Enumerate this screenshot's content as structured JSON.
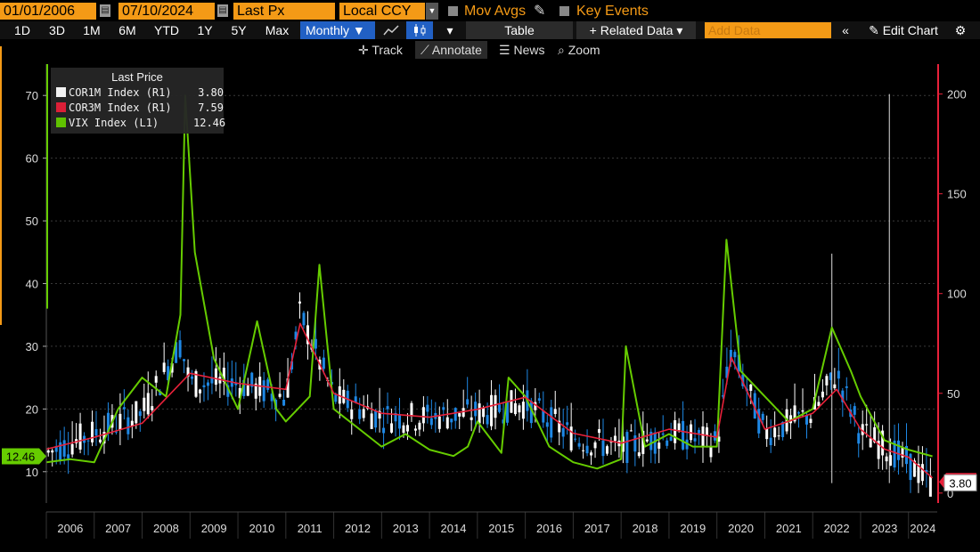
{
  "toolbar": {
    "start_date": "01/01/2006",
    "end_date": "07/10/2024",
    "field": "Last Px",
    "currency": "Local CCY",
    "mov_avgs": "Mov Avgs",
    "key_events": "Key Events",
    "periods": [
      "1D",
      "3D",
      "1M",
      "6M",
      "YTD",
      "1Y",
      "5Y",
      "Max"
    ],
    "frequency": "Monthly ▼",
    "table": "Table",
    "related_data": "+ Related Data ▾",
    "add_data_placeholder": "Add Data",
    "edit_chart": "Edit Chart",
    "track": "Track",
    "annotate": "Annotate",
    "news": "News",
    "zoom": "Zoom"
  },
  "colors": {
    "accent": "#f49a16",
    "active_tab": "#2160c4",
    "cor1m": "#ffffff",
    "cor3m": "#e8213a",
    "vix": "#66cc00",
    "candle_up": "#ffffff",
    "candle_down": "#1e88e5"
  },
  "chart_data": {
    "type": "line",
    "title": "Last Price",
    "x_tick_labels": [
      "2006",
      "2007",
      "2008",
      "2009",
      "2010",
      "2011",
      "2012",
      "2013",
      "2014",
      "2015",
      "2016",
      "2017",
      "2018",
      "2019",
      "2020",
      "2021",
      "2022",
      "2023",
      "2024"
    ],
    "x_range": [
      2006.0,
      2024.6
    ],
    "left_axis": {
      "range": [
        5,
        75
      ],
      "ticks": [
        10,
        20,
        30,
        40,
        50,
        60,
        70
      ]
    },
    "right_axis": {
      "range": [
        -5,
        215
      ],
      "ticks": [
        0,
        50,
        100,
        150,
        200
      ]
    },
    "legend": {
      "placement": "top-left",
      "entries": [
        {
          "name": "COR1M Index  (R1)",
          "value": "3.80"
        },
        {
          "name": "COR3M Index  (R1)",
          "value": "7.59"
        },
        {
          "name": "VIX Index  (L1)",
          "value": "12.46"
        }
      ]
    },
    "last_value_tags": {
      "left": "12.46",
      "right": "3.80"
    },
    "series": [
      {
        "name": "VIX Index",
        "axis": "left",
        "x": [
          2006.0,
          2006.5,
          2007.0,
          2007.5,
          2008.0,
          2008.5,
          2008.8,
          2008.9,
          2009.1,
          2009.5,
          2010.0,
          2010.4,
          2010.8,
          2011.0,
          2011.5,
          2011.7,
          2012.0,
          2012.5,
          2013.0,
          2013.5,
          2014.0,
          2014.5,
          2014.8,
          2015.0,
          2015.5,
          2015.65,
          2016.0,
          2016.5,
          2017.0,
          2017.5,
          2018.0,
          2018.1,
          2018.5,
          2019.0,
          2019.5,
          2020.0,
          2020.2,
          2020.5,
          2021.0,
          2021.5,
          2022.0,
          2022.4,
          2022.8,
          2023.0,
          2023.5,
          2024.0,
          2024.5
        ],
        "y": [
          11.5,
          12.0,
          11.5,
          20.0,
          25.0,
          22.0,
          35.0,
          70.0,
          45.0,
          28.0,
          20.0,
          34.0,
          20.0,
          18.0,
          22.0,
          43.0,
          20.0,
          17.0,
          14.0,
          16.0,
          13.5,
          12.5,
          14.0,
          18.0,
          13.0,
          25.0,
          22.0,
          14.0,
          11.5,
          10.5,
          12.0,
          30.0,
          14.0,
          16.0,
          14.0,
          14.0,
          47.0,
          26.0,
          22.0,
          18.0,
          20.0,
          33.0,
          26.0,
          22.0,
          15.0,
          13.5,
          12.46
        ]
      },
      {
        "name": "COR3M Index",
        "axis": "right",
        "x": [
          2006.0,
          2007.0,
          2008.0,
          2009.0,
          2010.0,
          2011.0,
          2011.3,
          2012.0,
          2013.0,
          2014.0,
          2015.0,
          2016.0,
          2017.0,
          2018.0,
          2019.0,
          2020.0,
          2020.3,
          2021.0,
          2022.0,
          2022.5,
          2023.0,
          2023.5,
          2024.0,
          2024.5
        ],
        "y": [
          22.0,
          28.0,
          35.0,
          60.0,
          55.0,
          52.0,
          85.0,
          50.0,
          40.0,
          38.0,
          42.0,
          48.0,
          30.0,
          25.0,
          32.0,
          28.0,
          68.0,
          32.0,
          40.0,
          52.0,
          32.0,
          22.0,
          18.0,
          7.59
        ]
      },
      {
        "name": "COR1M Index",
        "axis": "right",
        "x": [
          2006.0,
          2007.0,
          2008.0,
          2008.8,
          2009.0,
          2010.0,
          2011.0,
          2011.3,
          2012.0,
          2013.0,
          2014.0,
          2015.0,
          2016.0,
          2017.0,
          2018.0,
          2019.0,
          2020.0,
          2020.3,
          2021.0,
          2022.0,
          2022.5,
          2023.0,
          2023.6,
          2024.0,
          2024.5
        ],
        "y": [
          20.0,
          30.0,
          40.0,
          75.0,
          55.0,
          55.0,
          48.0,
          90.0,
          48.0,
          38.0,
          38.0,
          40.0,
          45.0,
          28.0,
          22.0,
          30.0,
          25.0,
          72.0,
          30.0,
          40.0,
          60.0,
          30.0,
          22.0,
          15.0,
          3.8
        ]
      }
    ]
  }
}
